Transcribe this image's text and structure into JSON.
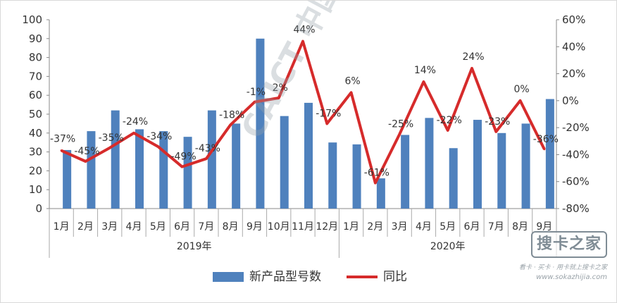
{
  "chart_data": {
    "type": "bar+line",
    "categories": [
      "1月",
      "2月",
      "3月",
      "4月",
      "5月",
      "6月",
      "7月",
      "8月",
      "9月",
      "10月",
      "11月",
      "12月",
      "1月",
      "2月",
      "3月",
      "4月",
      "5月",
      "6月",
      "7月",
      "8月",
      "9月"
    ],
    "year_groups": [
      {
        "label": "2019年",
        "count": 12
      },
      {
        "label": "2020年",
        "count": 9
      }
    ],
    "series": [
      {
        "name": "新产品型号数",
        "type": "bar",
        "axis": "left",
        "color": "#4f81bd",
        "values": [
          31,
          41,
          52,
          42,
          41,
          38,
          52,
          45,
          90,
          49,
          56,
          35,
          34,
          16,
          39,
          48,
          32,
          47,
          40,
          45,
          58
        ]
      },
      {
        "name": "同比",
        "type": "line",
        "axis": "right",
        "color": "#d62b2b",
        "values": [
          -37,
          -45,
          -35,
          -24,
          -34,
          -49,
          -43,
          -18,
          -1,
          2,
          44,
          -17,
          6,
          -61,
          -25,
          14,
          -22,
          24,
          -23,
          0,
          -36
        ],
        "labels": [
          "-37%",
          "-45%",
          "-35%",
          "-24%",
          "-34%",
          "-49%",
          "-43%",
          "-18%",
          "-1%",
          "2%",
          "44%",
          "-17%",
          "6%",
          "-61%",
          "-25%",
          "14%",
          "-22%",
          "24%",
          "-23%",
          "0%",
          "-36%"
        ]
      }
    ],
    "y_left": {
      "min": 0,
      "max": 100,
      "ticks": [
        "0",
        "10",
        "20",
        "30",
        "40",
        "50",
        "60",
        "70",
        "80",
        "90",
        "100"
      ]
    },
    "y_right": {
      "min": -80,
      "max": 60,
      "ticks": [
        "-80%",
        "-60%",
        "-40%",
        "-20%",
        "0%",
        "20%",
        "40%",
        "60%"
      ]
    },
    "legend": {
      "position": "bottom",
      "items": [
        "新产品型号数",
        "同比"
      ]
    },
    "grid": false
  },
  "watermark": {
    "diagonal_text": "CAICT 中国信通院",
    "logo_text": "搜卡之家",
    "slogan": "看卡 · 买卡 · 用卡就上搜卡之家",
    "url": "www.sokazhijia.com"
  }
}
